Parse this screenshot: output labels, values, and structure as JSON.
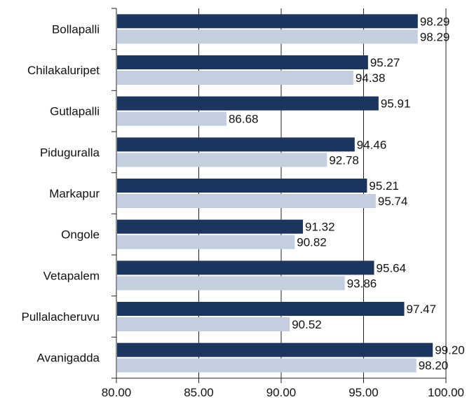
{
  "chart_data": {
    "type": "bar",
    "orientation": "horizontal",
    "categories": [
      "Bollapalli",
      "Chilakaluripet",
      "Gutlapalli",
      "Piduguralla",
      "Markapur",
      "Ongole",
      "Vetapalem",
      "Pullalacheruvu",
      "Avanigadda"
    ],
    "series": [
      {
        "values": [
          98.29,
          95.27,
          95.91,
          94.46,
          95.21,
          91.32,
          95.64,
          97.47,
          99.2
        ],
        "labels": [
          "98.29",
          "95.27",
          "95.91",
          "94.46",
          "95.21",
          "91.32",
          "95.64",
          "97.47",
          "99.20"
        ],
        "color": "#1c355e"
      },
      {
        "values": [
          98.29,
          94.38,
          86.68,
          92.78,
          95.74,
          90.82,
          93.86,
          90.52,
          98.2
        ],
        "labels": [
          "98.29",
          "94.38",
          "86.68",
          "92.78",
          "95.74",
          "90.82",
          "93.86",
          "90.52",
          "98.20"
        ],
        "color": "#c3cfe0"
      }
    ],
    "xlim": [
      80,
      100
    ],
    "xticks": [
      "80.00",
      "85.00",
      "90.00",
      "95.00",
      "100.00"
    ],
    "grid": "vertical",
    "legend": "none",
    "title": "",
    "xlabel": "",
    "ylabel": ""
  }
}
